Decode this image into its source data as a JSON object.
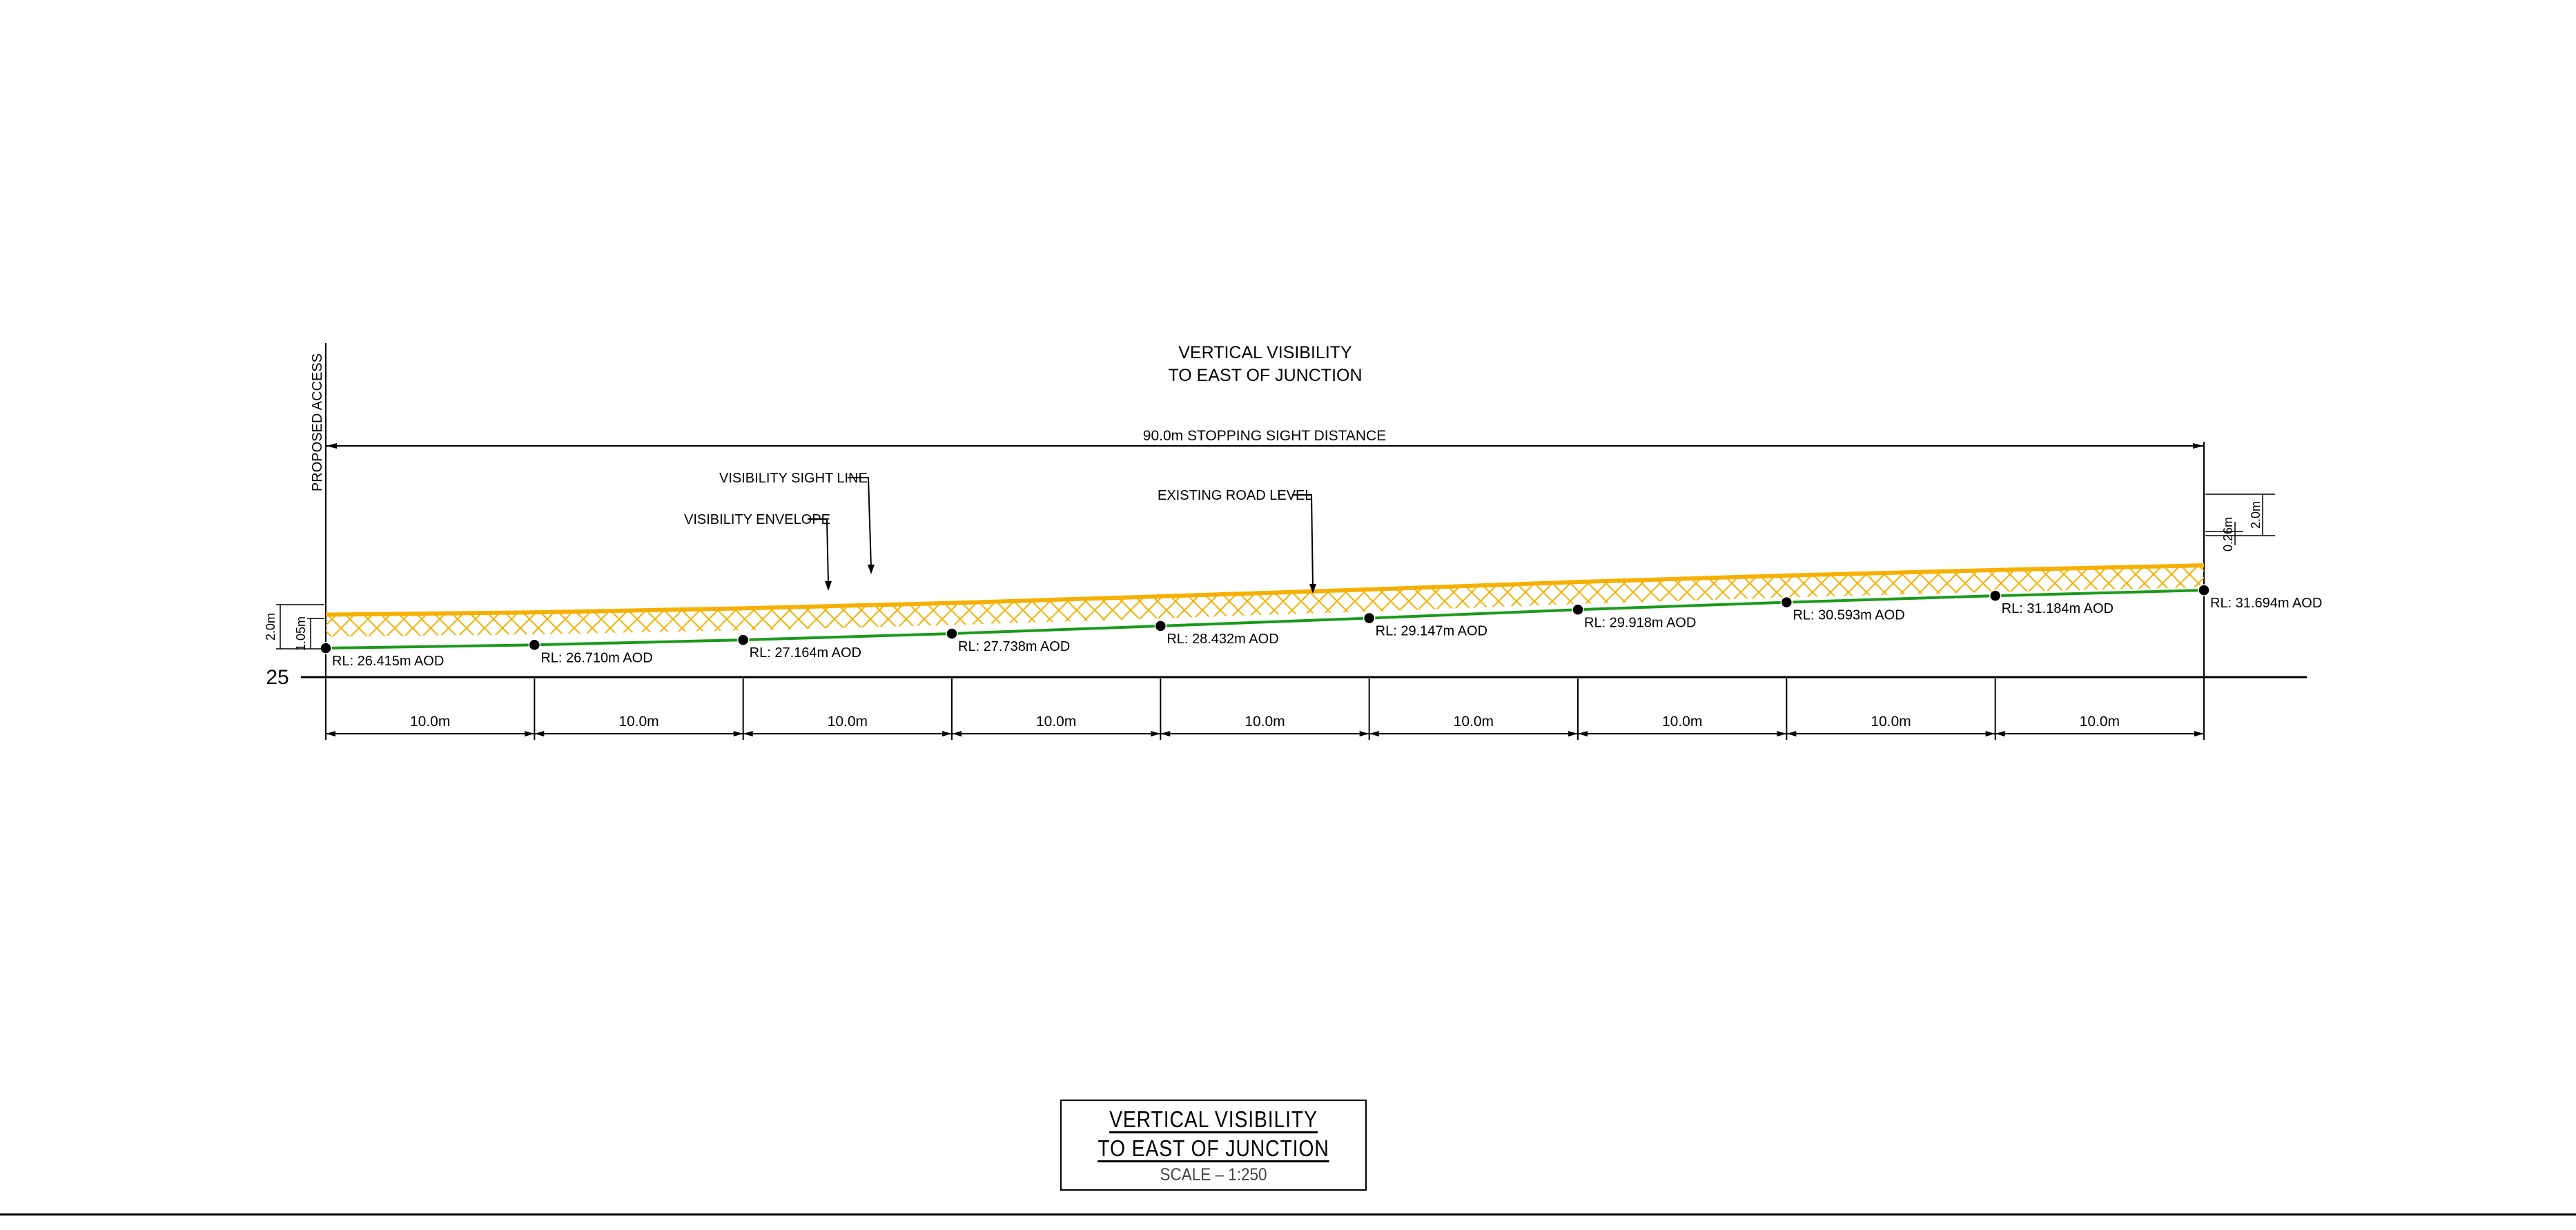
{
  "drawing": {
    "title_top": [
      "VERTICAL  VISIBILITY",
      "TO  EAST  OF  JUNCTION"
    ],
    "proposed_access": "PROPOSED  ACCESS",
    "stopping_sight": "90.0m  STOPPING  SIGHT  DISTANCE",
    "labels": {
      "sight_line": "VISIBILITY  SIGHT  LINE",
      "envelope": "VISIBILITY  ENVELOPE",
      "road_level": "EXISTING  ROAD  LEVEL"
    },
    "datum_label": "25",
    "left_dims": {
      "envelope_height": "2.0m",
      "eye_height": "1.05m"
    },
    "right_dims": {
      "envelope_height": "2.0m",
      "object_height": "0.26m"
    },
    "chainage_spacing": "10.0m",
    "chainages_m": [
      0,
      10,
      20,
      30,
      40,
      50,
      60,
      70,
      80,
      90
    ],
    "levels": [
      {
        "rl": 26.415,
        "label": "RL:  26.415m  AOD"
      },
      {
        "rl": 26.71,
        "label": "RL:  26.710m  AOD"
      },
      {
        "rl": 27.164,
        "label": "RL:  27.164m  AOD"
      },
      {
        "rl": 27.738,
        "label": "RL:  27.738m  AOD"
      },
      {
        "rl": 28.432,
        "label": "RL:  28.432m  AOD"
      },
      {
        "rl": 29.147,
        "label": "RL:  29.147m  AOD"
      },
      {
        "rl": 29.918,
        "label": "RL:  29.918m  AOD"
      },
      {
        "rl": 30.593,
        "label": "RL:  30.593m  AOD"
      },
      {
        "rl": 31.184,
        "label": "RL:  31.184m  AOD"
      },
      {
        "rl": 31.694,
        "label": "RL:  31.694m  AOD"
      }
    ],
    "colors": {
      "road": "#1a9a1a",
      "envelope": "#f5b000",
      "ink": "#000000"
    }
  },
  "title_block": {
    "line1": "VERTICAL  VISIBILITY",
    "line2": "TO  EAST  OF  JUNCTION",
    "scale": "SCALE  –  1:250"
  }
}
